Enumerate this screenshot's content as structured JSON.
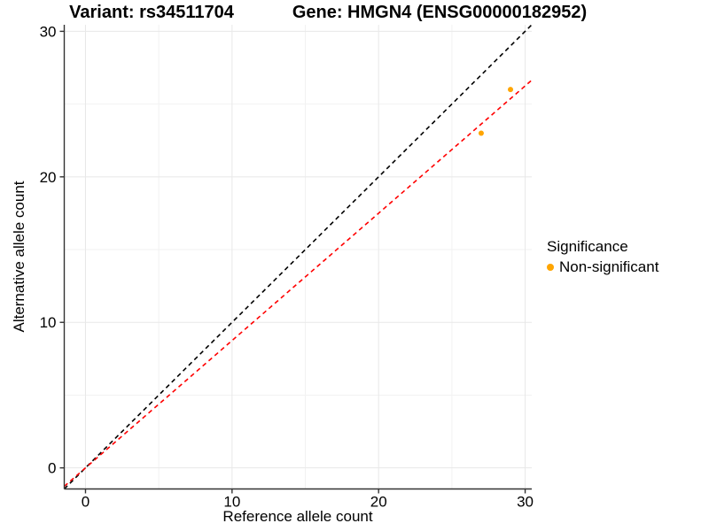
{
  "header": {
    "variant_title": "Variant: rs34511704",
    "gene_title": "Gene: HMGN4 (ENSG00000182952)"
  },
  "legend": {
    "title": "Significance",
    "items": [
      {
        "label": "Non-significant",
        "color": "#FFA500"
      }
    ]
  },
  "colors": {
    "background": "#FFFFFF",
    "grid_major": "#E8E8E8",
    "grid_minor": "#F2F2F2",
    "axis": "#333333",
    "text": "#000000",
    "point": "#FFA500",
    "identity_line": "#000000",
    "fit_line": "#FF0000"
  },
  "chart_data": {
    "type": "scatter",
    "title": "Variant: rs34511704 — Gene: HMGN4 (ENSG00000182952)",
    "xlabel": "Reference allele count",
    "ylabel": "Alternative allele count",
    "xlim": [
      -1.45,
      30.45
    ],
    "ylim": [
      -1.45,
      30.45
    ],
    "x_ticks": [
      0,
      10,
      20,
      30
    ],
    "y_ticks": [
      0,
      10,
      20,
      30
    ],
    "x_minor_ticks": [
      5,
      15,
      25
    ],
    "y_minor_ticks": [
      5,
      15,
      25
    ],
    "grid": true,
    "legend_position": "right",
    "series": [
      {
        "name": "Non-significant",
        "color": "#FFA500",
        "points": [
          {
            "x": 27,
            "y": 23
          },
          {
            "x": 29,
            "y": 26
          }
        ]
      }
    ],
    "reference_lines": [
      {
        "name": "identity",
        "slope": 1,
        "intercept": 0,
        "color": "#000000",
        "style": "dashed"
      },
      {
        "name": "allelic-ratio-fit",
        "slope": 0.875,
        "intercept": 0,
        "color": "#FF0000",
        "style": "dashed"
      }
    ]
  }
}
